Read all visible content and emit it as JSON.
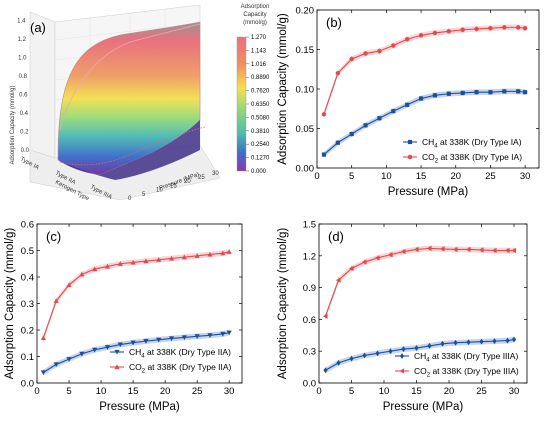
{
  "chart_data": [
    {
      "panel": "(a)",
      "type": "surface3d",
      "zlabel": "Adsorption Capacity (mmol/g)",
      "colorbar": {
        "title_lines": [
          "Adsorption",
          "Capacity",
          "(mmol/g)"
        ],
        "ticks": [
          "1.270",
          "1.143",
          "1.016",
          "0.8890",
          "0.7620",
          "0.6350",
          "0.5080",
          "0.3810",
          "0.2540",
          "0.1270",
          "0.000"
        ],
        "colors": [
          "#ef6f7e",
          "#e35a6a",
          "#ee8e60",
          "#f5bb55",
          "#f4e04e",
          "#c9e455",
          "#8fd67a",
          "#4fbcae",
          "#3d7fc8",
          "#5a44b0",
          "#7a2f9c"
        ]
      },
      "z_ticks": [
        "0.0",
        "0.2",
        "0.4",
        "0.6",
        "0.8",
        "1.0",
        "1.2",
        "1.4"
      ],
      "kerogen_ticks": [
        "Type IA",
        "Type IIA",
        "Type IIIA"
      ],
      "kerogen_label": "Kerogen Type",
      "pressure_ticks": [
        "0",
        "5",
        "10",
        "15",
        "20",
        "25",
        "30"
      ],
      "pressure_label": "Pressure (MPa)"
    },
    {
      "panel": "(b)",
      "type": "line",
      "xlabel": "Pressure (MPa)",
      "ylabel": "Adsorption Capacity (mmol/g)",
      "xlim": [
        0,
        32
      ],
      "ylim": [
        0,
        0.2
      ],
      "xticks": [
        0,
        5,
        10,
        15,
        20,
        25,
        30
      ],
      "yticks": [
        0.0,
        0.05,
        0.1,
        0.15,
        0.2
      ],
      "ytick_labels": [
        "0.00",
        "0.05",
        "0.10",
        "0.15",
        "0.20"
      ],
      "legend_position": "bottom-right",
      "series": [
        {
          "name": "CH4 at 338K (Dry Type IA)",
          "label_prefix": "CH",
          "label_sub": "4",
          "label_rest": " at 338K (Dry Type IA)",
          "color": "#1f4e9a",
          "band": "#7fa1d6",
          "marker": "square",
          "x": [
            1,
            3,
            5,
            7,
            9,
            11,
            13,
            15,
            17,
            19,
            21,
            23,
            25,
            27,
            29,
            30
          ],
          "y": [
            0.017,
            0.032,
            0.043,
            0.054,
            0.063,
            0.072,
            0.08,
            0.088,
            0.092,
            0.094,
            0.095,
            0.096,
            0.096,
            0.097,
            0.097,
            0.096
          ]
        },
        {
          "name": "CO2 at 338K (Dry Type IA)",
          "label_prefix": "CO",
          "label_sub": "2",
          "label_rest": " at 338K (Dry Type IA)",
          "color": "#e34a4f",
          "band": "#f3a6a6",
          "marker": "circle",
          "x": [
            1,
            3,
            5,
            7,
            9,
            11,
            13,
            15,
            17,
            19,
            21,
            23,
            25,
            27,
            29,
            30
          ],
          "y": [
            0.068,
            0.12,
            0.138,
            0.145,
            0.148,
            0.155,
            0.163,
            0.168,
            0.171,
            0.173,
            0.175,
            0.176,
            0.177,
            0.178,
            0.178,
            0.177
          ]
        }
      ]
    },
    {
      "panel": "(c)",
      "type": "line",
      "xlabel": "Pressure (MPa)",
      "ylabel": "Adsorption Capacity (mmol/g)",
      "xlim": [
        0,
        32
      ],
      "ylim": [
        0,
        0.6
      ],
      "xticks": [
        0,
        5,
        10,
        15,
        20,
        25,
        30
      ],
      "yticks": [
        0.0,
        0.1,
        0.2,
        0.3,
        0.4,
        0.5,
        0.6
      ],
      "ytick_labels": [
        "0.0",
        "0.1",
        "0.2",
        "0.3",
        "0.4",
        "0.5",
        "0.6"
      ],
      "legend_position": "bottom-right",
      "series": [
        {
          "name": "CH4 at 338K (Dry Type IIA)",
          "label_prefix": "CH",
          "label_sub": "4",
          "label_rest": " at 338K (Dry Type IIA)",
          "color": "#1f4e9a",
          "band": "#7fa1d6",
          "marker": "triangle-down",
          "x": [
            1,
            3,
            5,
            7,
            9,
            11,
            13,
            15,
            17,
            19,
            21,
            23,
            25,
            27,
            29,
            30
          ],
          "y": [
            0.04,
            0.07,
            0.09,
            0.11,
            0.125,
            0.135,
            0.145,
            0.152,
            0.158,
            0.163,
            0.168,
            0.172,
            0.176,
            0.18,
            0.185,
            0.19
          ]
        },
        {
          "name": "CO2 at 338K (Dry Type IIA)",
          "label_prefix": "CO",
          "label_sub": "2",
          "label_rest": " at 338K (Dry Type IIA)",
          "color": "#e34a4f",
          "band": "#f3a6a6",
          "marker": "triangle-up",
          "x": [
            1,
            3,
            5,
            7,
            9,
            11,
            13,
            15,
            17,
            19,
            21,
            23,
            25,
            27,
            29,
            30
          ],
          "y": [
            0.17,
            0.31,
            0.37,
            0.41,
            0.43,
            0.44,
            0.45,
            0.455,
            0.46,
            0.465,
            0.47,
            0.475,
            0.48,
            0.485,
            0.49,
            0.495
          ]
        }
      ]
    },
    {
      "panel": "(d)",
      "type": "line",
      "xlabel": "Pressure (MPa)",
      "ylabel": "Adsorption Capacity (mmol/g)",
      "xlim": [
        0,
        32
      ],
      "ylim": [
        0,
        1.5
      ],
      "xticks": [
        0,
        5,
        10,
        15,
        20,
        25,
        30
      ],
      "yticks": [
        0.0,
        0.3,
        0.6,
        0.9,
        1.2,
        1.5
      ],
      "ytick_labels": [
        "0.0",
        "0.3",
        "0.6",
        "0.9",
        "1.2",
        "1.5"
      ],
      "legend_position": "bottom-right",
      "series": [
        {
          "name": "CH4 at 338K (Dry Type IIIA)",
          "label_prefix": "CH",
          "label_sub": "4",
          "label_rest": " at 338K (Dry Type IIIA)",
          "color": "#1f4e9a",
          "band": "#7fa1d6",
          "marker": "diamond",
          "x": [
            1,
            3,
            5,
            7,
            9,
            11,
            13,
            15,
            17,
            19,
            21,
            23,
            25,
            27,
            29,
            30
          ],
          "y": [
            0.12,
            0.19,
            0.23,
            0.26,
            0.28,
            0.3,
            0.32,
            0.33,
            0.35,
            0.37,
            0.38,
            0.385,
            0.39,
            0.395,
            0.4,
            0.41
          ]
        },
        {
          "name": "CO2 at 338K (Dry Type IIIA)",
          "label_prefix": "CO",
          "label_sub": "2",
          "label_rest": " at 338K (Dry Type IIIA)",
          "color": "#e34a4f",
          "band": "#f3a6a6",
          "marker": "triangle-left",
          "x": [
            1,
            3,
            5,
            7,
            9,
            11,
            13,
            15,
            17,
            19,
            21,
            23,
            25,
            27,
            29,
            30
          ],
          "y": [
            0.63,
            0.97,
            1.08,
            1.14,
            1.18,
            1.21,
            1.24,
            1.26,
            1.27,
            1.265,
            1.26,
            1.26,
            1.255,
            1.25,
            1.25,
            1.25
          ]
        }
      ]
    }
  ]
}
